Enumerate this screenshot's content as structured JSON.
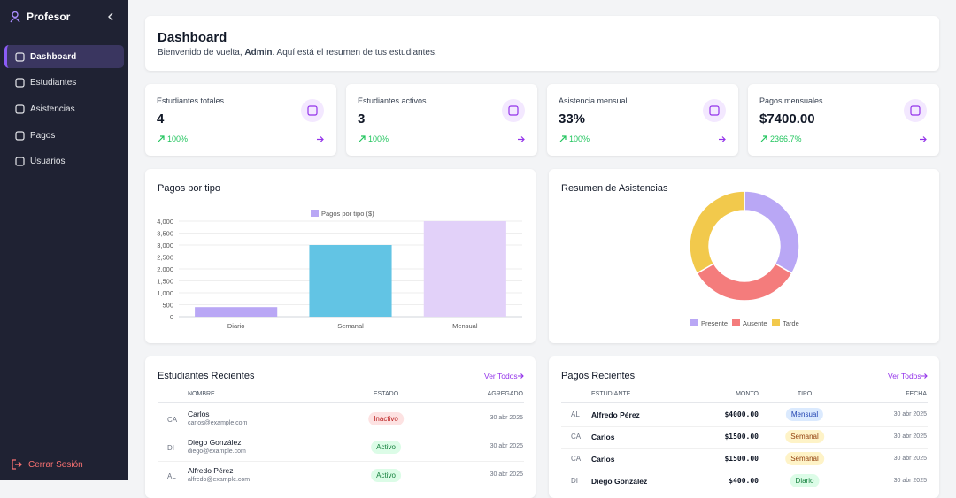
{
  "sidebar": {
    "title": "Profesor",
    "nav": [
      "Dashboard",
      "Estudiantes",
      "Asistencias",
      "Pagos",
      "Usuarios"
    ],
    "active": 0,
    "logout": "Cerrar Sesión"
  },
  "header": {
    "title": "Dashboard",
    "greeting": "Bienvenido de vuelta, ",
    "user": "Admin",
    "rest": ". Aquí está el resumen de tus estudiantes."
  },
  "stats": [
    {
      "label": "Estudiantes totales",
      "value": "4",
      "change": "100%"
    },
    {
      "label": "Estudiantes activos",
      "value": "3",
      "change": "100%"
    },
    {
      "label": "Asistencia mensual",
      "value": "33%",
      "change": "100%"
    },
    {
      "label": "Pagos mensuales",
      "value": "$7400.00",
      "change": "2366.7%"
    }
  ],
  "chart_data": [
    {
      "type": "bar",
      "title": "Pagos por tipo",
      "legend": "Pagos por tipo ($)",
      "legend_color": "#b9a7f5",
      "categories": [
        "Diario",
        "Semanal",
        "Mensual"
      ],
      "values": [
        400,
        3000,
        4000
      ],
      "colors": [
        "#b9a7f5",
        "#62c4e4",
        "#e2d1f9"
      ],
      "ylim": [
        0,
        4000
      ],
      "yticks": [
        0,
        500,
        {
          "value": 1000,
          "label": "1,000"
        },
        {
          "value": 1500,
          "label": "1,500"
        },
        {
          "value": 2000,
          "label": "2,000"
        },
        {
          "value": 2500,
          "label": "2,500"
        },
        {
          "value": 3000,
          "label": "3,000"
        },
        {
          "value": 3500,
          "label": "3,500"
        },
        {
          "value": 4000,
          "label": "4,000"
        }
      ],
      "grid": true
    },
    {
      "type": "doughnut",
      "title": "Resumen de Asistencias",
      "categories": [
        "Presente",
        "Ausente",
        "Tarde"
      ],
      "values": [
        1,
        1,
        1
      ],
      "colors": [
        "#b9a7f5",
        "#f47c7c",
        "#f2c94c"
      ]
    }
  ],
  "students": {
    "title": "Estudiantes Recientes",
    "link": "Ver Todos",
    "columns": [
      "NOMBRE",
      "ESTADO",
      "AGREGADO"
    ],
    "rows": [
      {
        "initials": "CA",
        "name": "Carlos",
        "email": "carlos@example.com",
        "status": "Inactivo",
        "date": "30 abr 2025"
      },
      {
        "initials": "DI",
        "name": "Diego González",
        "email": "diego@example.com",
        "status": "Activo",
        "date": "30 abr 2025"
      },
      {
        "initials": "AL",
        "name": "Alfredo Pérez",
        "email": "alfredo@example.com",
        "status": "Activo",
        "date": "30 abr 2025"
      }
    ]
  },
  "payments": {
    "title": "Pagos Recientes",
    "link": "Ver Todos",
    "columns": [
      "ESTUDIANTE",
      "MONTO",
      "TIPO",
      "FECHA"
    ],
    "rows": [
      {
        "initials": "AL",
        "name": "Alfredo Pérez",
        "amount": "$4000.00",
        "type": "Mensual",
        "date": "30 abr 2025"
      },
      {
        "initials": "CA",
        "name": "Carlos",
        "amount": "$1500.00",
        "type": "Semanal",
        "date": "30 abr 2025"
      },
      {
        "initials": "CA",
        "name": "Carlos",
        "amount": "$1500.00",
        "type": "Semanal",
        "date": "30 abr 2025"
      },
      {
        "initials": "DI",
        "name": "Diego González",
        "amount": "$400.00",
        "type": "Diario",
        "date": "30 abr 2025"
      }
    ]
  }
}
